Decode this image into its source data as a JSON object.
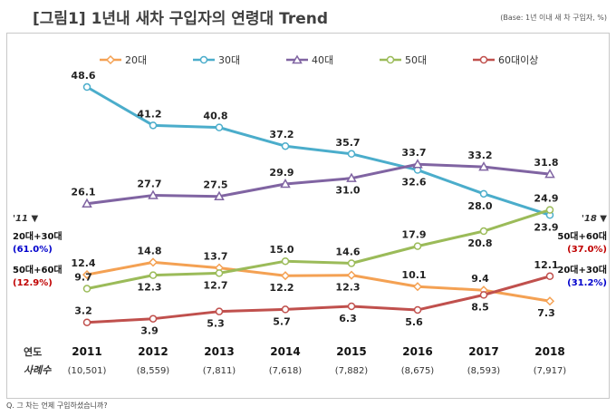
{
  "header": {
    "title": "[그림1] 1년내 새차 구입자의 연령대 Trend",
    "base_note": "(Base: 1년 이내 새 차 구입자, %)"
  },
  "footnote": "Q. 그 차는 언제 구입하셨습니까?",
  "colors": {
    "20s": "#f4a153",
    "30s": "#4badcb",
    "40s": "#8064a2",
    "50s": "#9bbb59",
    "60s": "#c0504d",
    "title_band": "#ffffff",
    "frame": "#c8c8c8"
  },
  "chart_data": {
    "type": "line",
    "x": [
      "2011",
      "2012",
      "2013",
      "2014",
      "2015",
      "2016",
      "2017",
      "2018"
    ],
    "x_row_label": "연도",
    "sample_row_label": "사례수",
    "sample_sizes": [
      "(10,501)",
      "(8,559)",
      "(7,811)",
      "(7,618)",
      "(7,882)",
      "(8,675)",
      "(8,593)",
      "(7,917)"
    ],
    "ylim": [
      0,
      50
    ],
    "legend_position": "top",
    "series": [
      {
        "name": "20대",
        "color": "#f4a153",
        "values": [
          12.4,
          14.8,
          13.7,
          12.2,
          12.3,
          10.1,
          9.4,
          7.3
        ]
      },
      {
        "name": "30대",
        "color": "#4badcb",
        "values": [
          48.6,
          41.2,
          40.8,
          37.2,
          35.7,
          32.6,
          28.0,
          23.9
        ]
      },
      {
        "name": "40대",
        "color": "#8064a2",
        "values": [
          26.1,
          27.7,
          27.5,
          29.9,
          31.0,
          33.7,
          33.2,
          31.8
        ]
      },
      {
        "name": "50대",
        "color": "#9bbb59",
        "values": [
          9.7,
          12.3,
          12.7,
          15.0,
          14.6,
          17.9,
          20.8,
          24.9
        ]
      },
      {
        "name": "60대이상",
        "color": "#c0504d",
        "values": [
          3.2,
          3.9,
          5.3,
          5.7,
          6.3,
          5.6,
          8.5,
          12.1
        ]
      }
    ],
    "annotations": {
      "left": {
        "year": "'11",
        "items": [
          {
            "label": "20대+30대",
            "value": "(61.0%)",
            "color": "#0000cc"
          },
          {
            "label": "50대+60대",
            "value": "(12.9%)",
            "color": "#c00000"
          }
        ]
      },
      "right": {
        "year": "'18",
        "items": [
          {
            "label": "50대+60대",
            "value": "(37.0%)",
            "color": "#c00000"
          },
          {
            "label": "20대+30대",
            "value": "(31.2%)",
            "color": "#0000cc"
          }
        ]
      }
    }
  }
}
